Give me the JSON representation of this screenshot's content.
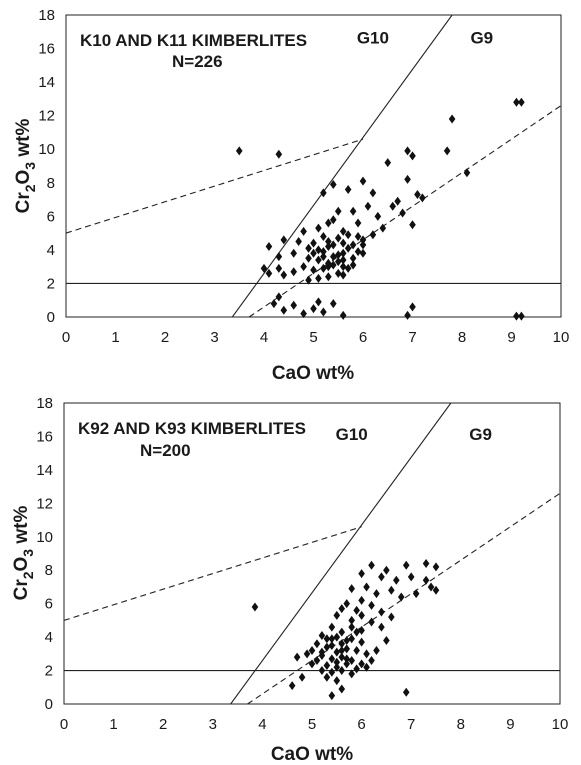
{
  "chart_data": [
    {
      "type": "scatter",
      "title": "K10 AND K11 KIMBERLITES",
      "n_label": "N=226",
      "xlabel": "CaO wt%",
      "ylabel_parts": [
        "Cr",
        "2",
        "O",
        "3",
        " wt%"
      ],
      "xlim": [
        0,
        10
      ],
      "ylim": [
        0,
        18
      ],
      "xticks": [
        "0",
        "1",
        "2",
        "3",
        "4",
        "5",
        "6",
        "7",
        "8",
        "9",
        "10"
      ],
      "yticks": [
        "0",
        "2",
        "4",
        "6",
        "8",
        "10",
        "12",
        "14",
        "16",
        "18"
      ],
      "grid": false,
      "regions": [
        {
          "label": "G10",
          "x": 6.2,
          "y": 16.3
        },
        {
          "label": "G9",
          "x": 8.4,
          "y": 16.3
        }
      ],
      "lines": [
        {
          "name": "g9-g10-boundary",
          "style": "solid",
          "points": [
            [
              3.36,
              0
            ],
            [
              7.8,
              18
            ]
          ]
        },
        {
          "name": "cr2o3-2-line",
          "style": "solid",
          "points": [
            [
              0,
              2
            ],
            [
              10,
              2
            ]
          ]
        },
        {
          "name": "upper-dashed-line",
          "style": "dashed",
          "points": [
            [
              0,
              5
            ],
            [
              6,
              10.6
            ]
          ]
        },
        {
          "name": "lower-dashed-line",
          "style": "dashed",
          "points": [
            [
              3.7,
              0
            ],
            [
              10,
              12.6
            ]
          ]
        }
      ],
      "points": [
        [
          3.5,
          9.9
        ],
        [
          4.3,
          9.7
        ],
        [
          9.1,
          12.8
        ],
        [
          9.2,
          12.8
        ],
        [
          7.8,
          11.8
        ],
        [
          8.1,
          8.6
        ],
        [
          7.7,
          9.9
        ],
        [
          6.9,
          9.9
        ],
        [
          7.0,
          9.6
        ],
        [
          6.5,
          9.2
        ],
        [
          6.0,
          8.1
        ],
        [
          6.2,
          7.4
        ],
        [
          5.2,
          7.4
        ],
        [
          5.4,
          7.9
        ],
        [
          5.7,
          7.6
        ],
        [
          6.7,
          6.9
        ],
        [
          7.1,
          7.3
        ],
        [
          6.9,
          8.2
        ],
        [
          7.2,
          7.1
        ],
        [
          6.1,
          6.6
        ],
        [
          5.8,
          6.3
        ],
        [
          6.3,
          6.0
        ],
        [
          5.9,
          5.6
        ],
        [
          6.4,
          5.3
        ],
        [
          6.6,
          6.6
        ],
        [
          6.8,
          6.2
        ],
        [
          7.0,
          5.5
        ],
        [
          6.2,
          4.9
        ],
        [
          6.0,
          4.3
        ],
        [
          5.4,
          5.8
        ],
        [
          5.5,
          6.3
        ],
        [
          5.3,
          5.6
        ],
        [
          5.6,
          5.1
        ],
        [
          5.1,
          5.3
        ],
        [
          4.8,
          5.1
        ],
        [
          4.7,
          4.5
        ],
        [
          4.4,
          4.6
        ],
        [
          4.1,
          4.2
        ],
        [
          4.3,
          3.6
        ],
        [
          4.6,
          3.8
        ],
        [
          4.9,
          4.1
        ],
        [
          5.0,
          3.8
        ],
        [
          5.1,
          3.4
        ],
        [
          5.2,
          3.9
        ],
        [
          5.3,
          4.2
        ],
        [
          5.4,
          3.6
        ],
        [
          5.5,
          3.3
        ],
        [
          5.6,
          3.8
        ],
        [
          5.7,
          4.1
        ],
        [
          5.8,
          3.5
        ],
        [
          5.9,
          3.9
        ],
        [
          5.2,
          2.9
        ],
        [
          5.0,
          2.8
        ],
        [
          4.8,
          3.0
        ],
        [
          4.6,
          2.7
        ],
        [
          4.3,
          2.9
        ],
        [
          4.1,
          2.6
        ],
        [
          4.0,
          2.9
        ],
        [
          4.4,
          2.5
        ],
        [
          5.3,
          3.2
        ],
        [
          5.5,
          3.7
        ],
        [
          5.4,
          3.1
        ],
        [
          5.6,
          3.4
        ],
        [
          5.7,
          2.9
        ],
        [
          5.8,
          3.1
        ],
        [
          5.3,
          2.4
        ],
        [
          5.5,
          2.6
        ],
        [
          5.1,
          2.3
        ],
        [
          5.2,
          4.8
        ],
        [
          5.3,
          4.5
        ],
        [
          5.0,
          4.4
        ],
        [
          5.7,
          4.9
        ],
        [
          6.0,
          4.6
        ],
        [
          5.9,
          4.8
        ],
        [
          5.4,
          4.3
        ],
        [
          5.6,
          4.4
        ],
        [
          5.5,
          4.7
        ],
        [
          5.1,
          4.0
        ],
        [
          4.9,
          3.5
        ],
        [
          5.6,
          3.0
        ],
        [
          5.8,
          4.3
        ],
        [
          6.0,
          3.8
        ],
        [
          5.2,
          3.6
        ],
        [
          5.3,
          3.0
        ],
        [
          4.2,
          0.8
        ],
        [
          4.4,
          0.4
        ],
        [
          4.6,
          0.7
        ],
        [
          4.8,
          0.2
        ],
        [
          5.0,
          0.5
        ],
        [
          5.2,
          0.3
        ],
        [
          5.4,
          0.8
        ],
        [
          5.6,
          0.1
        ],
        [
          4.3,
          1.2
        ],
        [
          5.1,
          0.9
        ],
        [
          6.9,
          0.1
        ],
        [
          7.0,
          0.6
        ],
        [
          9.1,
          0.05
        ],
        [
          9.2,
          0.05
        ],
        [
          4.9,
          2.2
        ],
        [
          5.6,
          2.5
        ]
      ]
    },
    {
      "type": "scatter",
      "title": "K92 AND K93 KIMBERLITES",
      "n_label": "N=200",
      "xlabel": "CaO wt%",
      "ylabel_parts": [
        "Cr",
        "2",
        "O",
        "3",
        " wt%"
      ],
      "xlim": [
        0,
        10
      ],
      "ylim": [
        0,
        18
      ],
      "xticks": [
        "0",
        "1",
        "2",
        "3",
        "4",
        "5",
        "6",
        "7",
        "8",
        "9",
        "10"
      ],
      "yticks": [
        "0",
        "2",
        "4",
        "6",
        "8",
        "10",
        "12",
        "14",
        "16",
        "18"
      ],
      "grid": false,
      "regions": [
        {
          "label": "G10",
          "x": 5.8,
          "y": 15.8
        },
        {
          "label": "G9",
          "x": 8.4,
          "y": 15.8
        }
      ],
      "lines": [
        {
          "name": "g9-g10-boundary",
          "style": "solid",
          "points": [
            [
              3.36,
              0
            ],
            [
              7.8,
              18
            ]
          ]
        },
        {
          "name": "cr2o3-2-line",
          "style": "solid",
          "points": [
            [
              0,
              2
            ],
            [
              10,
              2
            ]
          ]
        },
        {
          "name": "upper-dashed-line",
          "style": "dashed",
          "points": [
            [
              0,
              5
            ],
            [
              6,
              10.6
            ]
          ]
        },
        {
          "name": "lower-dashed-line",
          "style": "dashed",
          "points": [
            [
              3.7,
              0
            ],
            [
              10,
              12.6
            ]
          ]
        }
      ],
      "points": [
        [
          3.85,
          5.8
        ],
        [
          6.2,
          8.3
        ],
        [
          6.5,
          8.0
        ],
        [
          6.9,
          8.3
        ],
        [
          7.3,
          8.4
        ],
        [
          7.5,
          8.2
        ],
        [
          6.0,
          7.8
        ],
        [
          6.4,
          7.6
        ],
        [
          6.7,
          7.4
        ],
        [
          7.0,
          7.6
        ],
        [
          7.3,
          7.4
        ],
        [
          7.4,
          7.0
        ],
        [
          7.5,
          6.8
        ],
        [
          6.1,
          7.0
        ],
        [
          6.3,
          6.6
        ],
        [
          6.6,
          6.8
        ],
        [
          6.8,
          6.4
        ],
        [
          7.1,
          6.6
        ],
        [
          5.8,
          6.9
        ],
        [
          6.0,
          6.2
        ],
        [
          5.7,
          6.0
        ],
        [
          5.9,
          5.6
        ],
        [
          6.2,
          5.9
        ],
        [
          6.4,
          5.5
        ],
        [
          6.6,
          5.2
        ],
        [
          5.5,
          5.3
        ],
        [
          5.6,
          5.7
        ],
        [
          5.8,
          5.0
        ],
        [
          6.0,
          5.3
        ],
        [
          6.2,
          4.9
        ],
        [
          6.4,
          4.6
        ],
        [
          5.4,
          4.6
        ],
        [
          5.6,
          4.3
        ],
        [
          5.8,
          4.6
        ],
        [
          6.0,
          4.4
        ],
        [
          5.2,
          4.1
        ],
        [
          5.4,
          3.9
        ],
        [
          5.6,
          3.6
        ],
        [
          5.8,
          3.9
        ],
        [
          6.0,
          3.7
        ],
        [
          5.1,
          3.6
        ],
        [
          5.3,
          3.4
        ],
        [
          5.5,
          3.1
        ],
        [
          5.7,
          3.3
        ],
        [
          5.9,
          3.2
        ],
        [
          6.1,
          3.0
        ],
        [
          5.0,
          3.2
        ],
        [
          5.2,
          2.9
        ],
        [
          5.4,
          2.7
        ],
        [
          5.6,
          2.8
        ],
        [
          5.8,
          2.6
        ],
        [
          6.0,
          2.4
        ],
        [
          6.2,
          2.6
        ],
        [
          5.1,
          2.6
        ],
        [
          5.3,
          2.3
        ],
        [
          5.5,
          2.2
        ],
        [
          5.7,
          2.4
        ],
        [
          5.9,
          2.1
        ],
        [
          5.2,
          2.0
        ],
        [
          5.4,
          1.9
        ],
        [
          5.6,
          2.0
        ],
        [
          5.8,
          1.8
        ],
        [
          5.3,
          1.6
        ],
        [
          5.5,
          1.4
        ],
        [
          5.6,
          0.9
        ],
        [
          5.4,
          0.5
        ],
        [
          4.8,
          1.6
        ],
        [
          4.6,
          1.1
        ],
        [
          4.7,
          2.8
        ],
        [
          4.9,
          3.0
        ],
        [
          6.9,
          0.7
        ],
        [
          6.1,
          2.2
        ],
        [
          6.3,
          3.2
        ],
        [
          6.5,
          3.8
        ],
        [
          5.3,
          3.9
        ],
        [
          5.5,
          4.0
        ],
        [
          5.7,
          3.8
        ],
        [
          5.4,
          3.5
        ],
        [
          5.6,
          3.2
        ],
        [
          5.2,
          3.1
        ],
        [
          5.5,
          2.5
        ],
        [
          5.7,
          2.7
        ],
        [
          5.0,
          2.4
        ],
        [
          5.9,
          4.3
        ]
      ]
    }
  ]
}
